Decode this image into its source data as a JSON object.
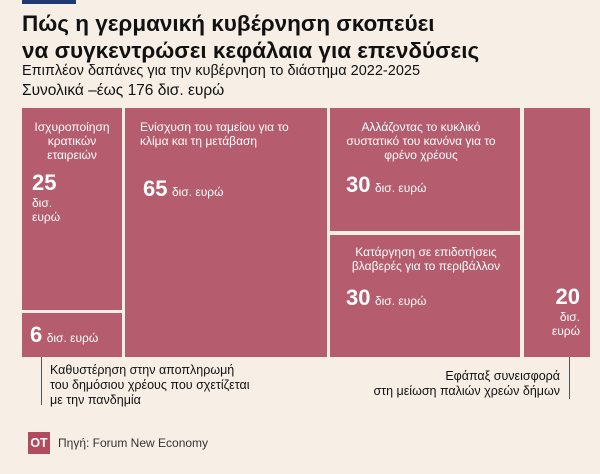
{
  "header": {
    "title_line1": "Πώς η γερμανική κυβέρνηση σκοπεύει",
    "title_line2": "να συγκεντρώσει κεφάλαια για επενδύσεις",
    "subtitle": "Επιπλέον δαπάνες για την κυβέρνηση το διάστημα 2022-2025",
    "total": "Συνολικά –έως 176 δισ. ευρώ"
  },
  "accent": "#b55c6f",
  "chart_data": {
    "type": "treemap",
    "title": "Πώς η γερμανική κυβέρνηση σκοπεύει να συγκεντρώσει κεφάλαια για επενδύσεις",
    "subtitle": "Επιπλέον δαπάνες για την κυβέρνηση το διάστημα 2022-2025",
    "total_label": "Συνολικά –έως 176 δισ. ευρώ",
    "unit": "δισ. ευρώ",
    "items": [
      {
        "label": "Ισχυροποίηση κρατικών εταιρειών",
        "value": 25,
        "unit_lines": [
          "δισ.",
          "ευρώ"
        ]
      },
      {
        "label": "Ενίσχυση του ταμείου για το κλίμα και τη μετάβαση",
        "value": 65,
        "unit": "δισ. ευρώ"
      },
      {
        "label": "Αλλάζοντας το κυκλικό συστατικό του κανόνα για το φρένο χρέους",
        "value": 30,
        "unit": "δισ. ευρώ"
      },
      {
        "label": "Κατάργηση σε επιδοτήσεις βλαβερές για το περιβάλλον",
        "value": 30,
        "unit": "δισ. ευρώ"
      },
      {
        "label": "Καθυστέρηση στην αποπληρωμή του δημόσιου χρέους που σχετίζεται με την πανδημία",
        "value": 6,
        "unit": "δισ. ευρώ"
      },
      {
        "label": "Εφάπαξ συνεισφορά στη μείωση παλιών χρεών δήμων",
        "value": 20,
        "unit_lines": [
          "δισ.",
          "ευρώ"
        ]
      }
    ],
    "callouts": {
      "pandemic_line1": "Καθυστέρηση στην αποπληρωμή",
      "pandemic_line2": "του δημόσιου χρέους που σχετίζεται",
      "pandemic_line3": "με την πανδημία",
      "munic_line1": "Εφάπαξ συνεισφορά",
      "munic_line2": "στη μείωση παλιών χρεών δήμων"
    }
  },
  "footer": {
    "logo": "ΟΤ",
    "source": "Πηγή: Forum New Economy"
  }
}
